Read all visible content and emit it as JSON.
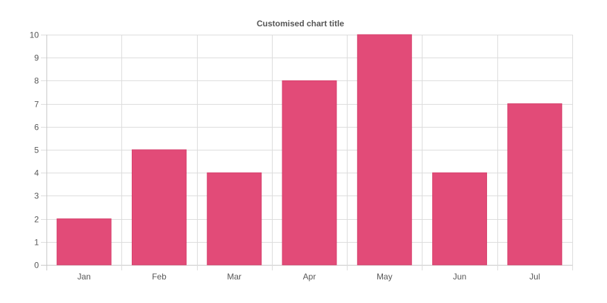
{
  "chart_data": {
    "type": "bar",
    "title": "Customised chart title",
    "categories": [
      "Jan",
      "Feb",
      "Mar",
      "Apr",
      "May",
      "Jun",
      "Jul"
    ],
    "series": [
      {
        "values": [
          2,
          5,
          4,
          8,
          10,
          4,
          7
        ],
        "color": "#e24b78"
      }
    ],
    "ylim": [
      0,
      10
    ],
    "yticks": [
      "0",
      "1",
      "2",
      "3",
      "4",
      "5",
      "6",
      "7",
      "8",
      "9",
      "10"
    ],
    "grid": true,
    "legend": "none"
  }
}
